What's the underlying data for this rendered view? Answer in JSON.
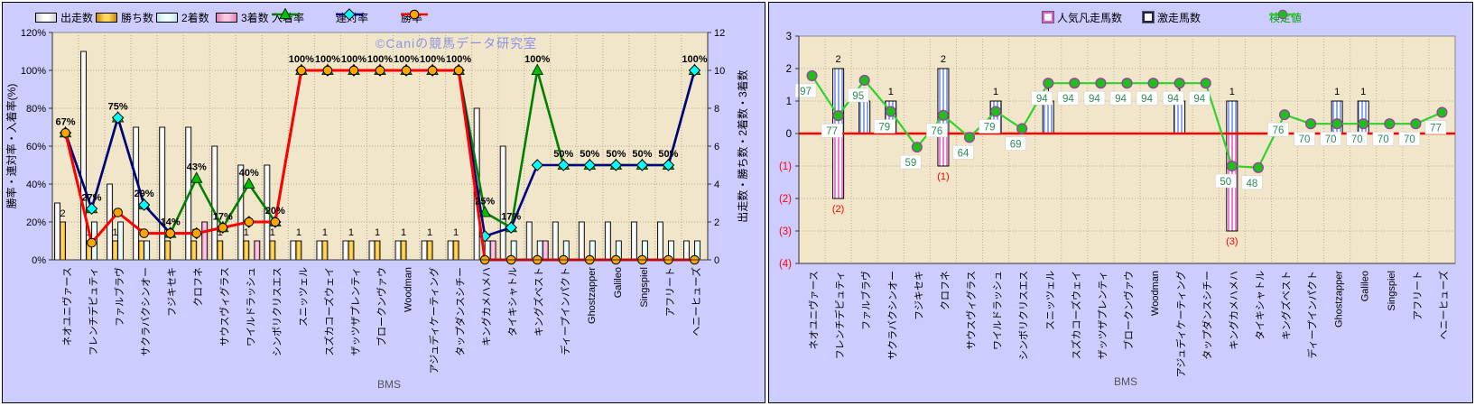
{
  "watermark": "©Caniの競馬データ研究室",
  "categories": [
    "ネオユニヴァース",
    "フレンチデピュティ",
    "ファルブラヴ",
    "サクラバクシンオー",
    "フジキセキ",
    "クロフネ",
    "サウスヴィグラス",
    "ワイルドラッシュ",
    "シンボリクリスエス",
    "スニッツェル",
    "スズカコーズウェイ",
    "ザッツザプレンティ",
    "ブロークンヴァウ",
    "Woodman",
    "アジュディケーティング",
    "タップダンスシチー",
    "キングカメハメハ",
    "タイキシャトル",
    "キングズベスト",
    "ディープインパクト",
    "Ghostzapper",
    "Galileo",
    "Singspiel",
    "アフリート",
    "ヘニーヒューズ"
  ],
  "colors": {
    "panel_bg": "#CCCCFF",
    "plot_bg": "#F1E6C9",
    "grid": "#B4AA90",
    "zero_line": "#FF0000",
    "negative_tick": "#FF0000",
    "watermark": "#8089E8",
    "bar_starts": "#FFFFFF",
    "bar_wins": "#F5B201",
    "bar_second": "#D8F2F0",
    "bar_third": "#F2A6CC",
    "line_place": "#008000",
    "line_exacta": "#000080",
    "line_win": "#FF0000",
    "kentei_line": "#2FD12F",
    "kentei_label": "#2E8B57",
    "geki_stripe": "#8FA8EE",
    "bonso_stripe": "#F27BD8"
  },
  "chart_data": [
    {
      "id": "bms-performance",
      "type": "bar+line",
      "legend": [
        {
          "label": "出走数",
          "type": "bar",
          "fill": "gWhite"
        },
        {
          "label": "勝ち数",
          "type": "bar",
          "fill": "gGold"
        },
        {
          "label": "2着数",
          "type": "bar",
          "fill": "gCyan"
        },
        {
          "label": "3着数",
          "type": "bar",
          "fill": "gPink"
        },
        {
          "label": "入着率",
          "type": "line",
          "color": "#008000",
          "marker": "triangle",
          "marker_fill": "#00C000"
        },
        {
          "label": "連対率",
          "type": "line",
          "color": "#000080",
          "marker": "diamond",
          "marker_fill": "#00FFFF"
        },
        {
          "label": "勝率",
          "type": "line",
          "color": "#FF0000",
          "marker": "circle",
          "marker_fill": "#FFA500"
        }
      ],
      "axes": {
        "left": {
          "title": "勝率・連対率・入着率(%)",
          "ticks": [
            "0%",
            "20%",
            "40%",
            "60%",
            "80%",
            "100%",
            "120%"
          ],
          "min": 0,
          "max": 120
        },
        "right": {
          "title": "出走数・勝ち数・2着数・3着数",
          "ticks": [
            "0",
            "2",
            "4",
            "6",
            "8",
            "10",
            "12"
          ],
          "min": 0,
          "max": 12
        },
        "x": {
          "title": "BMS"
        }
      },
      "bar_series": [
        {
          "name": "出走数",
          "fill": "gWhite",
          "values": [
            3,
            11,
            4,
            7,
            7,
            7,
            6,
            5,
            5,
            1,
            1,
            1,
            1,
            1,
            1,
            1,
            8,
            6,
            2,
            2,
            2,
            2,
            2,
            2,
            1
          ]
        },
        {
          "name": "勝ち数",
          "fill": "gGold",
          "values": [
            2,
            1,
            1,
            1,
            1,
            1,
            1,
            1,
            1,
            1,
            1,
            1,
            1,
            1,
            1,
            1,
            0,
            0,
            0,
            0,
            0,
            0,
            0,
            0,
            0
          ],
          "labels": [
            "2",
            "1",
            "1",
            "1",
            "1",
            "1",
            "1",
            "1",
            "1",
            "1",
            "1",
            "1",
            "1",
            "1",
            "1",
            "1",
            "",
            "",
            "",
            "",
            "",
            "",
            "",
            "",
            ""
          ]
        },
        {
          "name": "2着数",
          "fill": "gCyan",
          "values": [
            0,
            2,
            2,
            1,
            0,
            0,
            0,
            0,
            0,
            0,
            0,
            0,
            0,
            0,
            0,
            0,
            1,
            1,
            1,
            1,
            1,
            1,
            1,
            1,
            1
          ]
        },
        {
          "name": "3着数",
          "fill": "gPink",
          "values": [
            0,
            0,
            0,
            0,
            0,
            2,
            0,
            1,
            0,
            0,
            0,
            0,
            0,
            0,
            0,
            0,
            1,
            0,
            1,
            0,
            0,
            0,
            0,
            0,
            0
          ]
        }
      ],
      "line_series": [
        {
          "name": "入着率",
          "color": "#008000",
          "width": 2.6,
          "marker": "triangle",
          "marker_fill": "#00C000",
          "values": [
            67,
            27,
            75,
            29,
            14,
            43,
            17,
            40,
            20,
            100,
            100,
            100,
            100,
            100,
            100,
            100,
            25,
            17,
            100,
            50,
            50,
            50,
            50,
            50,
            100
          ],
          "labels": [
            "67%",
            "27%",
            "75%",
            "29%",
            "14%",
            "43%",
            "17%",
            "40%",
            "20%",
            "100%",
            "100%",
            "100%",
            "100%",
            "100%",
            "100%",
            "100%",
            "25%",
            "17%",
            "100%",
            "50%",
            "50%",
            "50%",
            "50%",
            "50%",
            "100%"
          ]
        },
        {
          "name": "連対率",
          "color": "#000080",
          "width": 2.6,
          "marker": "diamond",
          "marker_fill": "#00FFFF",
          "values": [
            67,
            27,
            75,
            29,
            14,
            14,
            17,
            20,
            20,
            100,
            100,
            100,
            100,
            100,
            100,
            100,
            12.5,
            17,
            50,
            50,
            50,
            50,
            50,
            50,
            100
          ]
        },
        {
          "name": "勝率",
          "color": "#FF0000",
          "width": 3,
          "marker": "circle",
          "marker_fill": "#FFA500",
          "values": [
            67,
            9,
            25,
            14,
            14,
            14,
            17,
            20,
            20,
            100,
            100,
            100,
            100,
            100,
            100,
            100,
            0,
            0,
            0,
            0,
            0,
            0,
            0,
            0,
            0
          ]
        }
      ]
    },
    {
      "id": "bms-kentei",
      "type": "bar+line",
      "legend": [
        {
          "label": "人気凡走馬数",
          "type": "square",
          "color": "#E858C8"
        },
        {
          "label": "激走馬数",
          "type": "square",
          "color": "#222244"
        },
        {
          "label": "検定値",
          "type": "line",
          "color": "#2FD12F",
          "marker": "circle",
          "marker_fill": "#1DBE1D",
          "text_color": "#00A000"
        }
      ],
      "axes": {
        "left": {
          "ticks": [
            "3",
            "2",
            "1",
            "0",
            "(1)",
            "(2)",
            "(3)",
            "(4)"
          ],
          "min": -4,
          "max": 3
        },
        "x": {
          "title": "BMS"
        }
      },
      "bar_series": [
        {
          "name": "激走馬数",
          "pattern": "pBlue",
          "values": [
            0,
            2,
            1,
            1,
            0,
            2,
            0,
            1,
            0,
            1,
            0,
            0,
            0,
            0,
            1,
            0,
            1,
            0,
            0,
            0,
            1,
            1,
            0,
            0,
            0
          ],
          "labels": [
            "",
            "2",
            "1",
            "1",
            "",
            "2",
            "",
            "1",
            "",
            "1",
            "",
            "",
            "",
            "",
            "1",
            "",
            "1",
            "",
            "",
            "",
            "1",
            "1",
            "",
            "",
            ""
          ],
          "label_color": "#000000"
        },
        {
          "name": "人気凡走馬数",
          "pattern": "pPink",
          "values": [
            0,
            -2,
            0,
            0,
            0,
            -1,
            0,
            0,
            0,
            0,
            0,
            0,
            0,
            0,
            0,
            0,
            -3,
            0,
            0,
            0,
            0,
            0,
            0,
            0,
            0
          ],
          "labels": [
            "",
            "(2)",
            "",
            "",
            "",
            "(1)",
            "",
            "",
            "",
            "",
            "",
            "",
            "",
            "",
            "",
            "",
            "(3)",
            "",
            "",
            "",
            "",
            "",
            "",
            "",
            ""
          ],
          "label_color": "#FF0000"
        }
      ],
      "line_series": [
        {
          "name": "検定値",
          "color": "#2FD12F",
          "width": 2.2,
          "marker": "circle",
          "marker_fill": "#1DBE1D",
          "marker_stroke": "#A03CA0",
          "labels": [
            "97",
            "77",
            "95",
            "79",
            "59",
            "76",
            "64",
            "79",
            "69",
            "94",
            "94",
            "94",
            "94",
            "94",
            "94",
            "94",
            "50",
            "48",
            "76",
            "70",
            "70",
            "70",
            "70",
            "70",
            "77"
          ],
          "plotted": [
            1.78,
            0.55,
            1.64,
            0.68,
            -0.42,
            0.56,
            -0.12,
            0.68,
            0.15,
            1.55,
            1.55,
            1.55,
            1.55,
            1.55,
            1.55,
            1.55,
            -1.0,
            -1.05,
            0.58,
            0.3,
            0.3,
            0.3,
            0.3,
            0.3,
            0.65
          ],
          "label_color": "#2E8B57"
        }
      ]
    }
  ]
}
